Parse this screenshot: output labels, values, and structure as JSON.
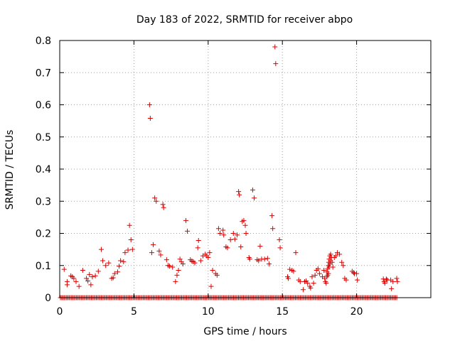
{
  "colors": {
    "series": "#dd0000",
    "axis": "#000000",
    "grid": "#a0a0a0",
    "background": "#ffffff"
  },
  "chart_data": {
    "type": "scatter",
    "title": "Day 183 of 2022, SRMTID for receiver abpo",
    "xlabel": "GPS time / hours",
    "ylabel": "SRMTID / TECUs",
    "xlim": [
      0,
      25
    ],
    "ylim": [
      0,
      0.8
    ],
    "grid": true,
    "marker": "+",
    "x_ticks": [
      0,
      5,
      10,
      15,
      20
    ],
    "x_tick_labels": [
      "0",
      "5",
      "10",
      "15",
      "20"
    ],
    "y_ticks": [
      0,
      0.1,
      0.2,
      0.3,
      0.4,
      0.5,
      0.6,
      0.7,
      0.8
    ],
    "y_tick_labels": [
      "0",
      "0.1",
      "0.2",
      "0.3",
      "0.4",
      "0.5",
      "0.6",
      "0.7",
      "0.8"
    ],
    "baseline": {
      "y": 0,
      "x_from": 0.05,
      "x_to": 22.75,
      "step": 0.0833
    },
    "series": [
      {
        "name": "SRMTID",
        "points": [
          [
            0.3,
            0.088
          ],
          [
            0.5,
            0.05
          ],
          [
            0.5,
            0.04
          ],
          [
            0.75,
            0.068
          ],
          [
            0.85,
            0.065
          ],
          [
            0.95,
            0.06
          ],
          [
            1.1,
            0.05
          ],
          [
            1.3,
            0.035
          ],
          [
            1.55,
            0.085
          ],
          [
            1.8,
            0.06
          ],
          [
            1.9,
            0.052
          ],
          [
            2.0,
            0.072
          ],
          [
            2.1,
            0.04
          ],
          [
            2.2,
            0.065
          ],
          [
            2.4,
            0.068
          ],
          [
            2.6,
            0.082
          ],
          [
            2.8,
            0.15
          ],
          [
            2.9,
            0.115
          ],
          [
            3.1,
            0.1
          ],
          [
            3.3,
            0.108
          ],
          [
            3.5,
            0.06
          ],
          [
            3.6,
            0.062
          ],
          [
            3.7,
            0.075
          ],
          [
            3.9,
            0.08
          ],
          [
            4.0,
            0.098
          ],
          [
            4.1,
            0.115
          ],
          [
            4.3,
            0.112
          ],
          [
            4.4,
            0.14
          ],
          [
            4.6,
            0.148
          ],
          [
            4.7,
            0.225
          ],
          [
            4.8,
            0.18
          ],
          [
            4.9,
            0.15
          ],
          [
            6.05,
            0.6
          ],
          [
            6.1,
            0.558
          ],
          [
            6.2,
            0.14
          ],
          [
            6.3,
            0.165
          ],
          [
            6.4,
            0.31
          ],
          [
            6.5,
            0.3
          ],
          [
            6.7,
            0.145
          ],
          [
            6.8,
            0.133
          ],
          [
            6.95,
            0.29
          ],
          [
            7.0,
            0.28
          ],
          [
            7.2,
            0.118
          ],
          [
            7.3,
            0.1
          ],
          [
            7.4,
            0.098
          ],
          [
            7.6,
            0.095
          ],
          [
            7.8,
            0.05
          ],
          [
            7.9,
            0.07
          ],
          [
            8.0,
            0.085
          ],
          [
            8.1,
            0.12
          ],
          [
            8.2,
            0.112
          ],
          [
            8.3,
            0.105
          ],
          [
            8.5,
            0.24
          ],
          [
            8.6,
            0.207
          ],
          [
            8.8,
            0.118
          ],
          [
            8.9,
            0.114
          ],
          [
            9.0,
            0.112
          ],
          [
            9.1,
            0.108
          ],
          [
            9.3,
            0.155
          ],
          [
            9.35,
            0.178
          ],
          [
            9.5,
            0.115
          ],
          [
            9.65,
            0.13
          ],
          [
            9.8,
            0.135
          ],
          [
            9.9,
            0.13
          ],
          [
            10.0,
            0.125
          ],
          [
            10.1,
            0.14
          ],
          [
            10.2,
            0.035
          ],
          [
            10.3,
            0.085
          ],
          [
            10.5,
            0.075
          ],
          [
            10.6,
            0.07
          ],
          [
            10.7,
            0.215
          ],
          [
            10.8,
            0.2
          ],
          [
            11.0,
            0.21
          ],
          [
            11.05,
            0.195
          ],
          [
            11.2,
            0.158
          ],
          [
            11.3,
            0.155
          ],
          [
            11.5,
            0.18
          ],
          [
            11.7,
            0.2
          ],
          [
            11.8,
            0.182
          ],
          [
            11.95,
            0.195
          ],
          [
            12.05,
            0.33
          ],
          [
            12.1,
            0.32
          ],
          [
            12.2,
            0.158
          ],
          [
            12.3,
            0.237
          ],
          [
            12.4,
            0.24
          ],
          [
            12.5,
            0.225
          ],
          [
            12.55,
            0.2
          ],
          [
            12.75,
            0.125
          ],
          [
            12.8,
            0.12
          ],
          [
            13.0,
            0.335
          ],
          [
            13.1,
            0.31
          ],
          [
            13.3,
            0.118
          ],
          [
            13.4,
            0.115
          ],
          [
            13.5,
            0.16
          ],
          [
            13.6,
            0.12
          ],
          [
            13.8,
            0.12
          ],
          [
            14.0,
            0.122
          ],
          [
            14.1,
            0.105
          ],
          [
            14.3,
            0.255
          ],
          [
            14.35,
            0.215
          ],
          [
            14.5,
            0.78
          ],
          [
            14.55,
            0.728
          ],
          [
            14.8,
            0.18
          ],
          [
            14.85,
            0.155
          ],
          [
            15.35,
            0.065
          ],
          [
            15.4,
            0.06
          ],
          [
            15.5,
            0.088
          ],
          [
            15.65,
            0.085
          ],
          [
            15.75,
            0.082
          ],
          [
            15.9,
            0.14
          ],
          [
            16.1,
            0.055
          ],
          [
            16.2,
            0.05
          ],
          [
            16.4,
            0.025
          ],
          [
            16.5,
            0.05
          ],
          [
            16.6,
            0.052
          ],
          [
            16.7,
            0.045
          ],
          [
            16.85,
            0.035
          ],
          [
            16.9,
            0.03
          ],
          [
            17.0,
            0.065
          ],
          [
            17.1,
            0.045
          ],
          [
            17.2,
            0.07
          ],
          [
            17.3,
            0.085
          ],
          [
            17.4,
            0.09
          ],
          [
            17.5,
            0.075
          ],
          [
            17.7,
            0.065
          ],
          [
            17.8,
            0.085
          ],
          [
            17.85,
            0.06
          ],
          [
            17.9,
            0.05
          ],
          [
            17.95,
            0.045
          ],
          [
            18.0,
            0.065
          ],
          [
            18.0,
            0.08
          ],
          [
            18.05,
            0.07
          ],
          [
            18.05,
            0.09
          ],
          [
            18.1,
            0.075
          ],
          [
            18.1,
            0.1
          ],
          [
            18.12,
            0.11
          ],
          [
            18.15,
            0.095
          ],
          [
            18.15,
            0.12
          ],
          [
            18.2,
            0.105
          ],
          [
            18.2,
            0.13
          ],
          [
            18.25,
            0.115
          ],
          [
            18.25,
            0.135
          ],
          [
            18.3,
            0.125
          ],
          [
            18.35,
            0.11
          ],
          [
            18.4,
            0.095
          ],
          [
            18.5,
            0.125
          ],
          [
            18.6,
            0.13
          ],
          [
            18.7,
            0.14
          ],
          [
            18.85,
            0.135
          ],
          [
            19.0,
            0.11
          ],
          [
            19.1,
            0.1
          ],
          [
            19.2,
            0.06
          ],
          [
            19.3,
            0.055
          ],
          [
            19.7,
            0.082
          ],
          [
            19.8,
            0.078
          ],
          [
            19.85,
            0.075
          ],
          [
            20.0,
            0.075
          ],
          [
            20.05,
            0.055
          ],
          [
            21.8,
            0.058
          ],
          [
            21.85,
            0.05
          ],
          [
            21.9,
            0.045
          ],
          [
            22.0,
            0.058
          ],
          [
            22.05,
            0.055
          ],
          [
            22.3,
            0.055
          ],
          [
            22.35,
            0.028
          ],
          [
            22.45,
            0.05
          ],
          [
            22.7,
            0.06
          ],
          [
            22.75,
            0.05
          ]
        ]
      }
    ]
  }
}
